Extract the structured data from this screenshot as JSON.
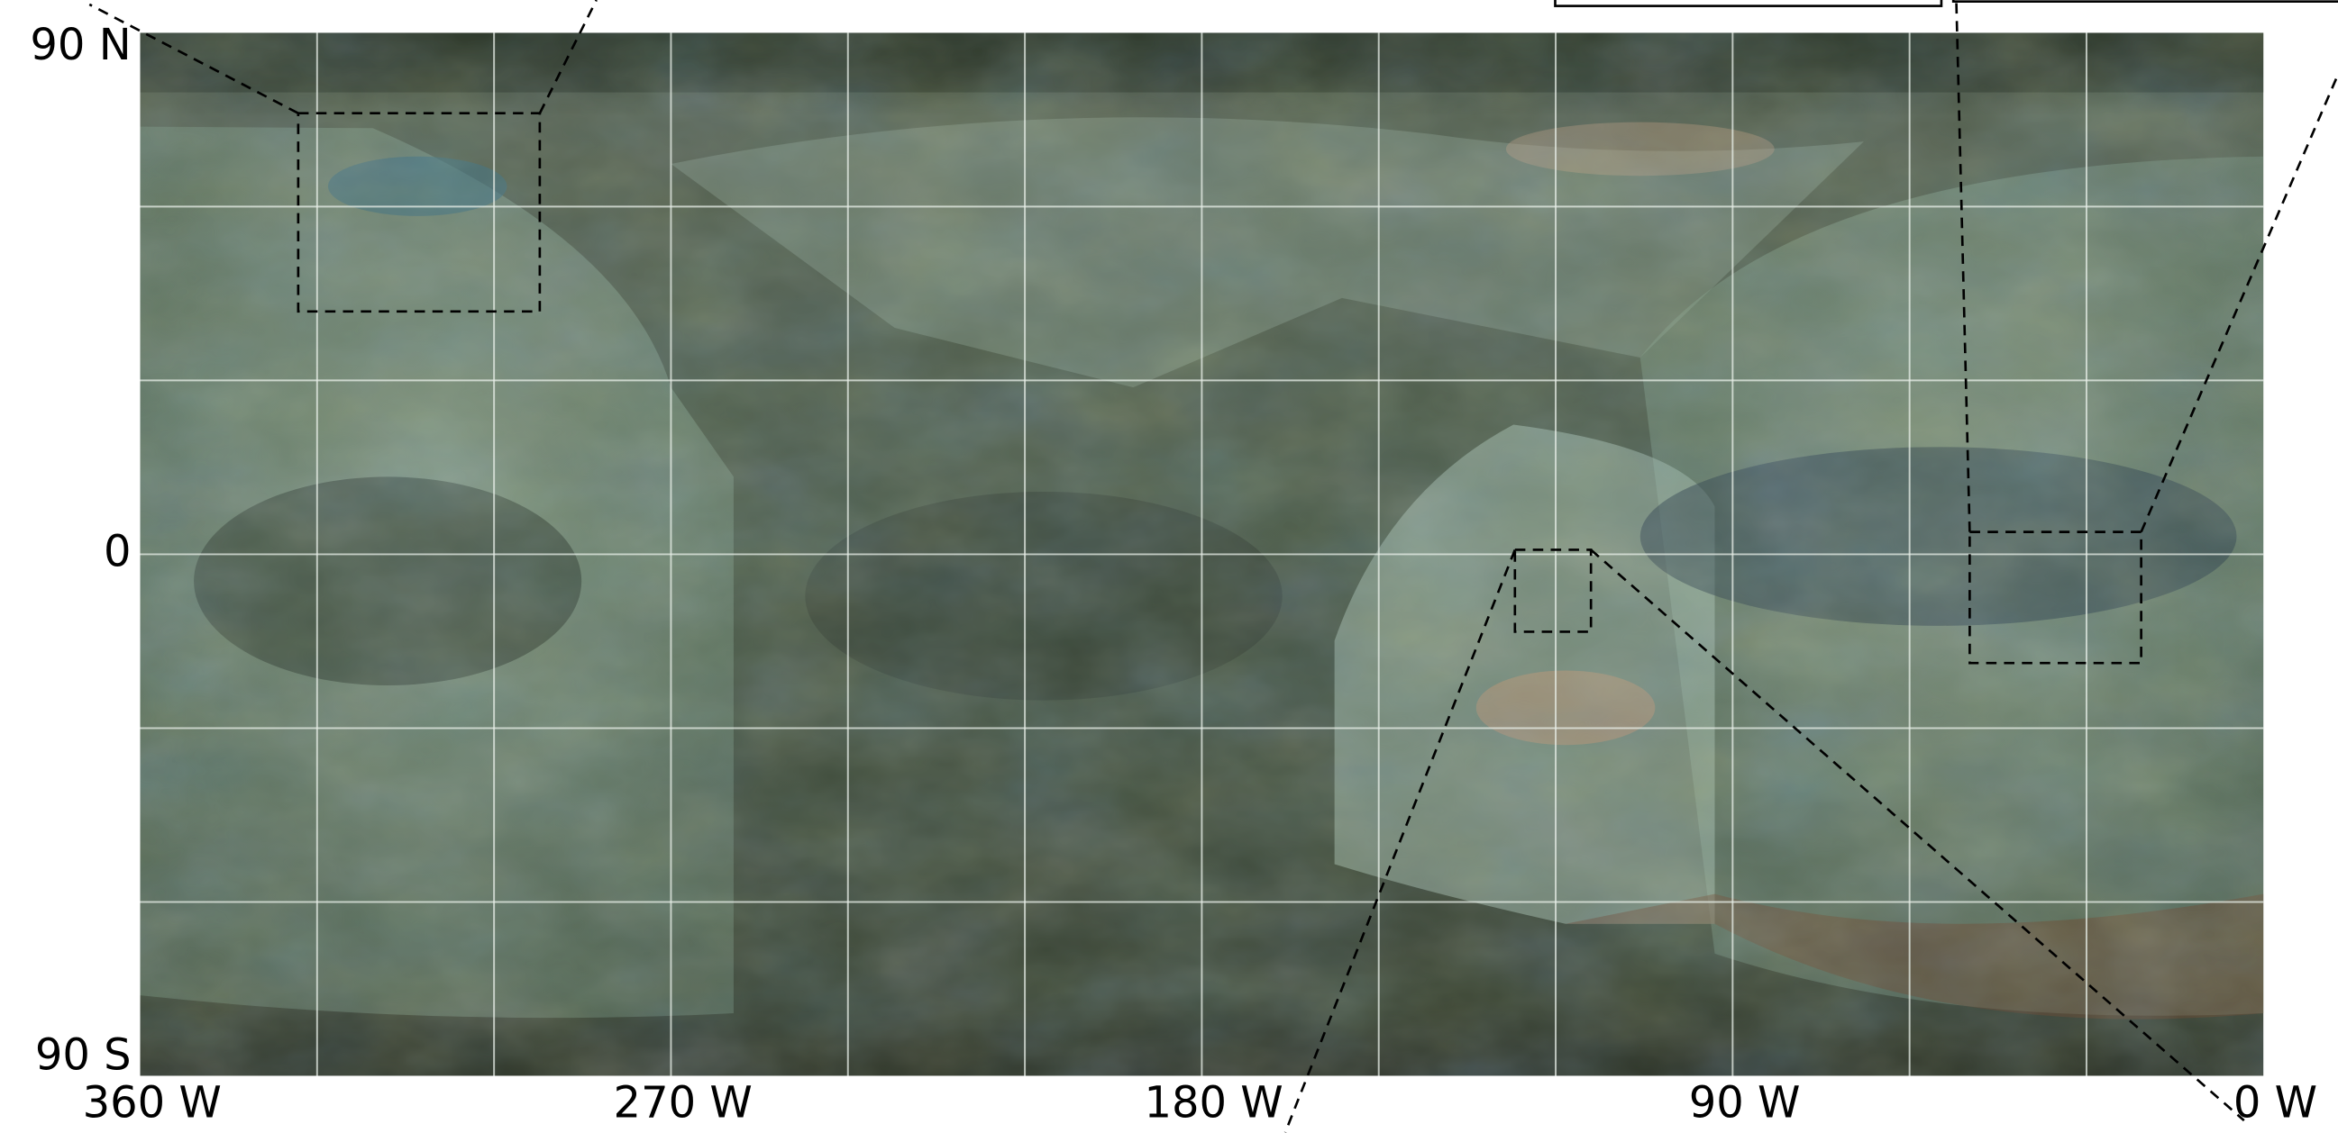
{
  "chart_data": {
    "type": "map",
    "xlim": [
      360,
      0
    ],
    "ylim": [
      -90,
      90
    ],
    "xticks": [
      {
        "value": 360,
        "label": "360 W"
      },
      {
        "value": 270,
        "label": "270 W"
      },
      {
        "value": 180,
        "label": "180 W"
      },
      {
        "value": 90,
        "label": "90 W"
      },
      {
        "value": 0,
        "label": "0 W"
      }
    ],
    "yticks": [
      {
        "value": 90,
        "label": "90 N"
      },
      0,
      {
        "value": -90,
        "label": "90 S"
      }
    ],
    "xgrid": [
      330,
      300,
      270,
      240,
      210,
      180,
      150,
      120,
      90,
      60,
      30
    ],
    "ygrid": [
      60,
      30,
      0,
      -30,
      -60
    ],
    "grid": true
  }
}
